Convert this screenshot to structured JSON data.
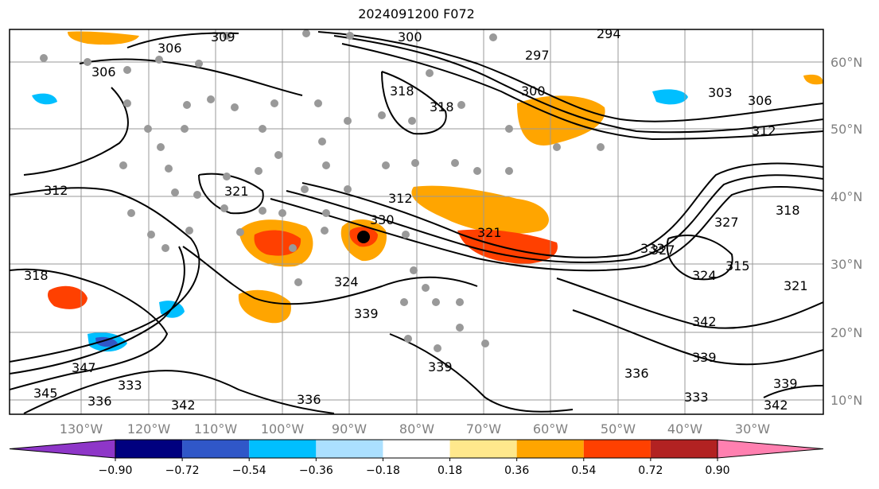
{
  "title": "2024091200 F072",
  "longitude_labels": [
    "130°W",
    "120°W",
    "110°W",
    "100°W",
    "90°W",
    "80°W",
    "70°W",
    "60°W",
    "50°W",
    "40°W",
    "30°W"
  ],
  "latitude_labels": [
    "60°N",
    "50°N",
    "40°N",
    "30°N",
    "20°N",
    "10°N"
  ],
  "contour_labels": [
    "309",
    "306",
    "306",
    "297",
    "300",
    "303",
    "306",
    "312",
    "318",
    "312",
    "321",
    "324",
    "318",
    "321",
    "327",
    "315",
    "318",
    "324",
    "321",
    "330",
    "333",
    "339",
    "339",
    "336",
    "342",
    "347",
    "345",
    "339",
    "336",
    "342",
    "333",
    "336",
    "339",
    "327",
    "333",
    "342",
    "318",
    "294",
    "300",
    "312"
  ],
  "colorbar": {
    "tick_labels": [
      "−0.90",
      "−0.72",
      "−0.54",
      "−0.36",
      "−0.18",
      "0.18",
      "0.36",
      "0.54",
      "0.72",
      "0.90"
    ],
    "colors": [
      "#8e36c8",
      "#00007f",
      "#3057c8",
      "#00bfff",
      "#abe0ff",
      "#ffffff",
      "#ffe88c",
      "#ffa500",
      "#ff4000",
      "#b22222",
      "#ff80b0"
    ]
  },
  "marker": {
    "label": "storm center"
  }
}
